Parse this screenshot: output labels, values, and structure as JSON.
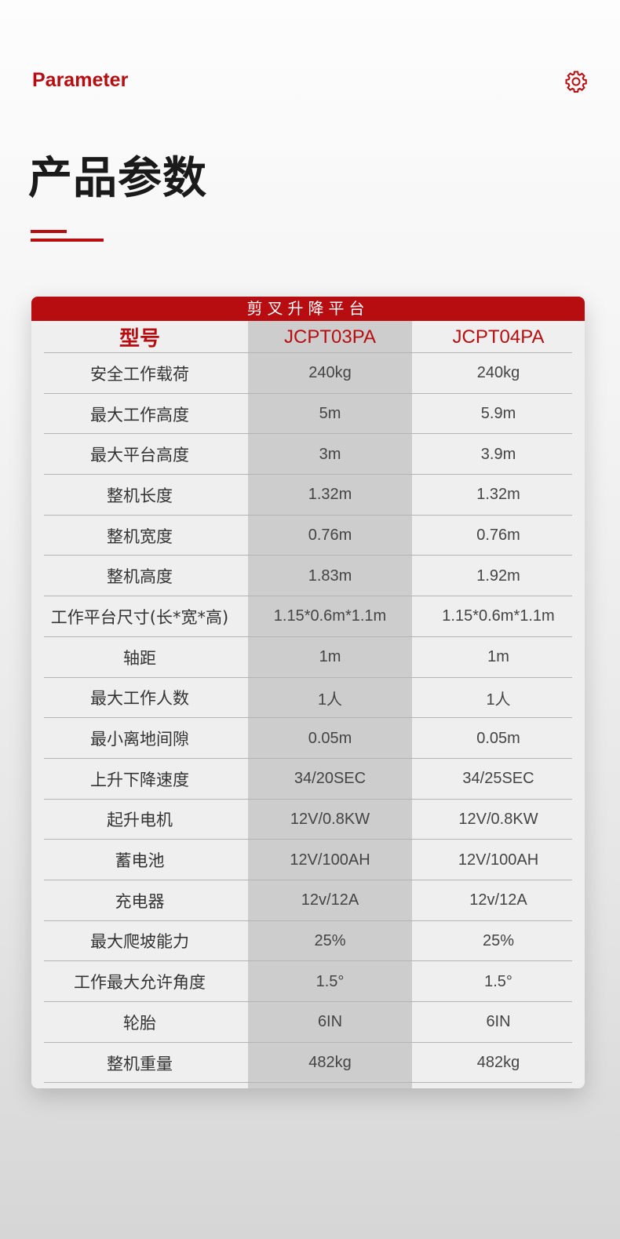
{
  "header": {
    "subtitle_en": "Parameter",
    "title": "产品参数",
    "settings_icon": "gear-icon",
    "accent": "#b80d10"
  },
  "table": {
    "caption": "剪叉升降平台",
    "columns": [
      "型号",
      "JCPT03PA",
      "JCPT04PA"
    ],
    "rows": [
      [
        "安全工作载荷",
        "240kg",
        "240kg"
      ],
      [
        "最大工作高度",
        "5m",
        "5.9m"
      ],
      [
        "最大平台高度",
        "3m",
        "3.9m"
      ],
      [
        "整机长度",
        "1.32m",
        "1.32m"
      ],
      [
        "整机宽度",
        "0.76m",
        "0.76m"
      ],
      [
        "整机高度",
        "1.83m",
        "1.92m"
      ],
      [
        "工作平台尺寸(长*宽*高)",
        "1.15*0.6m*1.1m",
        "1.15*0.6m*1.1m"
      ],
      [
        "轴距",
        "1m",
        "1m"
      ],
      [
        "最大工作人数",
        "1人",
        "1人"
      ],
      [
        "最小离地间隙",
        "0.05m",
        "0.05m"
      ],
      [
        "上升下降速度",
        "34/20SEC",
        "34/25SEC"
      ],
      [
        "起升电机",
        "12V/0.8KW",
        "12V/0.8KW"
      ],
      [
        "蓄电池",
        "12V/100AH",
        "12V/100AH"
      ],
      [
        "充电器",
        "12v/12A",
        "12v/12A"
      ],
      [
        "最大爬坡能力",
        "25%",
        "25%"
      ],
      [
        "工作最大允许角度",
        "1.5°",
        "1.5°"
      ],
      [
        "轮胎",
        "6IN",
        "6IN"
      ],
      [
        "整机重量",
        "482kg",
        "482kg"
      ]
    ]
  }
}
